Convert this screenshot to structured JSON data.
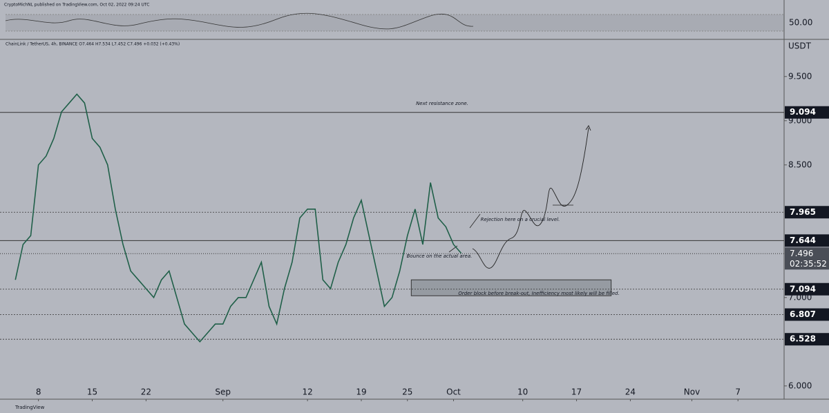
{
  "chart_data": {
    "type": "line",
    "header": "CryptoMichNL published on TradingView.com, Oct 02, 2022 09:24 UTC",
    "legend_text": "ChainLink / TetherUS, 4h, BINANCE O7.464 H7.534 L7.452 C7.496 +0.032 (+0.43%)",
    "y_unit": "USDT",
    "rsi_label": "50.00",
    "footer": "TradingView",
    "x": [
      217,
      218,
      219,
      220,
      221,
      222,
      223,
      224,
      225,
      226,
      227,
      228,
      229,
      230,
      231,
      232,
      233,
      234,
      235,
      236,
      237,
      238,
      239,
      240,
      241,
      242,
      243,
      244,
      245,
      246,
      247,
      248,
      249,
      250,
      251,
      252,
      253,
      254,
      255,
      256,
      257,
      258,
      259,
      260,
      261,
      262,
      263,
      264,
      265,
      266,
      267,
      268,
      269,
      270,
      271,
      272,
      273,
      274,
      275
    ],
    "series": [
      {
        "name": "ChainLink / TetherUS",
        "color": "#1f5f48",
        "values": [
          7.2,
          7.6,
          7.7,
          8.5,
          8.6,
          8.8,
          9.1,
          9.2,
          9.3,
          9.2,
          8.8,
          8.7,
          8.5,
          8.0,
          7.6,
          7.3,
          7.2,
          7.1,
          7.0,
          7.2,
          7.3,
          7.0,
          6.7,
          6.6,
          6.5,
          6.6,
          6.7,
          6.7,
          6.9,
          7.0,
          7.0,
          7.2,
          7.4,
          6.9,
          6.7,
          7.1,
          7.4,
          7.9,
          8.0,
          8.0,
          7.2,
          7.1,
          7.4,
          7.6,
          7.9,
          8.1,
          7.7,
          7.3,
          6.9,
          7.0,
          7.3,
          7.7,
          8.0,
          7.6,
          8.3,
          7.9,
          7.8,
          7.6,
          7.5
        ]
      }
    ],
    "xlim": [
      215,
      317
    ],
    "xticks": [
      {
        "value": 220,
        "label": "8"
      },
      {
        "value": 227,
        "label": "15"
      },
      {
        "value": 234,
        "label": "22"
      },
      {
        "value": 244,
        "label": "Sep"
      },
      {
        "value": 255,
        "label": "12"
      },
      {
        "value": 262,
        "label": "19"
      },
      {
        "value": 268,
        "label": "25"
      },
      {
        "value": 274,
        "label": "Oct"
      },
      {
        "value": 283,
        "label": "10"
      },
      {
        "value": 290,
        "label": "17"
      },
      {
        "value": 297,
        "label": "24"
      },
      {
        "value": 305,
        "label": "Nov"
      },
      {
        "value": 311,
        "label": "7"
      }
    ],
    "ylim": [
      5.85,
      9.92
    ],
    "yticks": [
      {
        "value": 6,
        "label": "6.000"
      },
      {
        "value": 7,
        "label": "7.000"
      },
      {
        "value": 8.5,
        "label": "8.500"
      },
      {
        "value": 9,
        "label": "9.000"
      },
      {
        "value": 9.5,
        "label": "9.500"
      }
    ],
    "levels": [
      {
        "price": 9.094,
        "line": "solid"
      },
      {
        "price": 7.965,
        "line": "dotted"
      },
      {
        "price": 7.644,
        "line": "solid"
      },
      {
        "price": 7.094,
        "line": "dotted"
      },
      {
        "price": 6.807,
        "line": "dotted"
      },
      {
        "price": 6.528,
        "line": "dotted"
      }
    ],
    "current_price": {
      "price": 7.496,
      "countdown": "02:35:52"
    },
    "order_block": {
      "top": 7.2,
      "bottom": 7.02,
      "from": 268.5,
      "to": 294.5
    },
    "annotations": [
      "Next resistance zone.",
      "Rejection here on a crucial level.",
      "Bounce on the actual area.",
      "Order block before break-out, Inefficiency most likely will be filled."
    ]
  }
}
